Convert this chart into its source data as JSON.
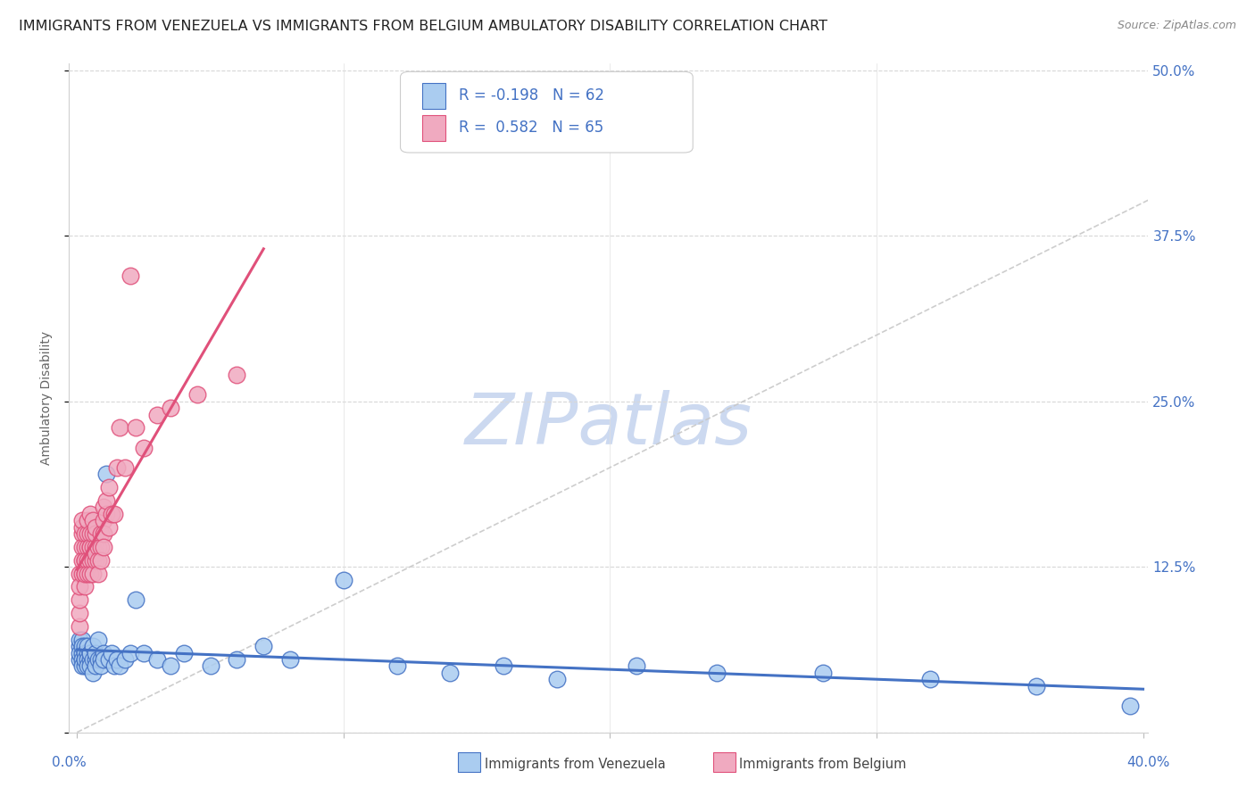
{
  "title": "IMMIGRANTS FROM VENEZUELA VS IMMIGRANTS FROM BELGIUM AMBULATORY DISABILITY CORRELATION CHART",
  "source": "Source: ZipAtlas.com",
  "ylabel": "Ambulatory Disability",
  "xlim": [
    0.0,
    0.4
  ],
  "ylim": [
    0.0,
    0.505
  ],
  "yticks": [
    0.0,
    0.125,
    0.25,
    0.375,
    0.5
  ],
  "ytick_labels": [
    "",
    "12.5%",
    "25.0%",
    "37.5%",
    "50.0%"
  ],
  "color_venezuela": "#aaccf0",
  "color_belgium": "#f0aac0",
  "color_trend_venezuela": "#4472c4",
  "color_trend_belgium": "#e0507a",
  "color_diagonal": "#c8c8c8",
  "watermark_color": "#ccd9f0",
  "title_fontsize": 11.5,
  "source_fontsize": 9,
  "axis_label_fontsize": 10,
  "tick_fontsize": 11,
  "legend_fontsize": 12,
  "venezuela_x": [
    0.001,
    0.001,
    0.001,
    0.001,
    0.002,
    0.002,
    0.002,
    0.002,
    0.002,
    0.003,
    0.003,
    0.003,
    0.003,
    0.003,
    0.004,
    0.004,
    0.004,
    0.004,
    0.005,
    0.005,
    0.005,
    0.005,
    0.006,
    0.006,
    0.006,
    0.007,
    0.007,
    0.007,
    0.008,
    0.008,
    0.009,
    0.009,
    0.01,
    0.01,
    0.011,
    0.012,
    0.013,
    0.014,
    0.015,
    0.016,
    0.018,
    0.02,
    0.022,
    0.025,
    0.03,
    0.035,
    0.04,
    0.05,
    0.06,
    0.07,
    0.08,
    0.1,
    0.12,
    0.14,
    0.16,
    0.18,
    0.21,
    0.24,
    0.28,
    0.32,
    0.36,
    0.395
  ],
  "venezuela_y": [
    0.065,
    0.055,
    0.07,
    0.06,
    0.06,
    0.055,
    0.07,
    0.065,
    0.05,
    0.055,
    0.065,
    0.06,
    0.05,
    0.055,
    0.06,
    0.055,
    0.065,
    0.05,
    0.06,
    0.055,
    0.05,
    0.06,
    0.055,
    0.045,
    0.065,
    0.055,
    0.06,
    0.05,
    0.07,
    0.055,
    0.055,
    0.05,
    0.06,
    0.055,
    0.195,
    0.055,
    0.06,
    0.05,
    0.055,
    0.05,
    0.055,
    0.06,
    0.1,
    0.06,
    0.055,
    0.05,
    0.06,
    0.05,
    0.055,
    0.065,
    0.055,
    0.115,
    0.05,
    0.045,
    0.05,
    0.04,
    0.05,
    0.045,
    0.045,
    0.04,
    0.035,
    0.02
  ],
  "belgium_x": [
    0.001,
    0.001,
    0.001,
    0.001,
    0.001,
    0.002,
    0.002,
    0.002,
    0.002,
    0.002,
    0.002,
    0.003,
    0.003,
    0.003,
    0.003,
    0.003,
    0.003,
    0.003,
    0.004,
    0.004,
    0.004,
    0.004,
    0.004,
    0.005,
    0.005,
    0.005,
    0.005,
    0.005,
    0.005,
    0.006,
    0.006,
    0.006,
    0.006,
    0.006,
    0.007,
    0.007,
    0.007,
    0.007,
    0.007,
    0.008,
    0.008,
    0.008,
    0.009,
    0.009,
    0.009,
    0.01,
    0.01,
    0.01,
    0.01,
    0.011,
    0.011,
    0.012,
    0.012,
    0.013,
    0.014,
    0.015,
    0.016,
    0.018,
    0.02,
    0.022,
    0.025,
    0.03,
    0.035,
    0.045,
    0.06
  ],
  "belgium_y": [
    0.08,
    0.12,
    0.09,
    0.1,
    0.11,
    0.15,
    0.14,
    0.12,
    0.13,
    0.155,
    0.16,
    0.13,
    0.12,
    0.14,
    0.11,
    0.15,
    0.13,
    0.12,
    0.14,
    0.15,
    0.13,
    0.12,
    0.16,
    0.14,
    0.13,
    0.12,
    0.15,
    0.14,
    0.165,
    0.13,
    0.14,
    0.15,
    0.12,
    0.16,
    0.13,
    0.14,
    0.15,
    0.135,
    0.155,
    0.14,
    0.13,
    0.12,
    0.15,
    0.14,
    0.13,
    0.16,
    0.15,
    0.17,
    0.14,
    0.165,
    0.175,
    0.155,
    0.185,
    0.165,
    0.165,
    0.2,
    0.23,
    0.2,
    0.345,
    0.23,
    0.215,
    0.24,
    0.245,
    0.255,
    0.27
  ]
}
